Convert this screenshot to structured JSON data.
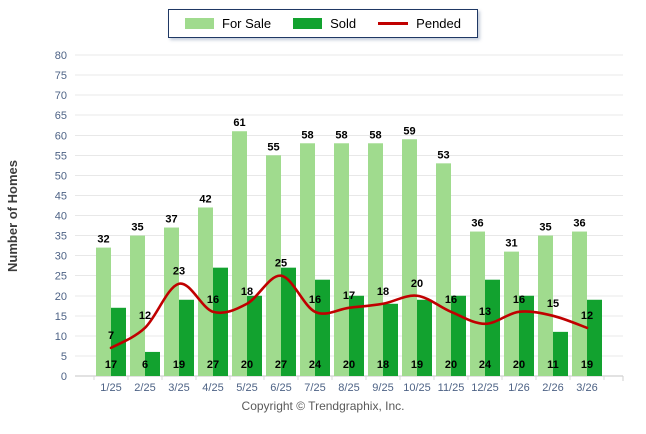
{
  "footer": {
    "copyright": "Copyright © Trendgraphix, Inc."
  },
  "chart_data": {
    "type": "bar",
    "subtype": "grouped-bars-with-line-overlay",
    "title": "",
    "xlabel": "",
    "ylabel": "Number of Homes",
    "ylim": [
      0,
      80
    ],
    "ytick_step": 5,
    "grid": true,
    "legend_position": "top-center",
    "bar_value_labels": true,
    "categories": [
      "1/25",
      "2/25",
      "3/25",
      "4/25",
      "5/25",
      "6/25",
      "7/25",
      "8/25",
      "9/25",
      "10/25",
      "11/25",
      "12/25",
      "1/26",
      "2/26",
      "3/26"
    ],
    "series": [
      {
        "name": "For Sale",
        "type": "bar",
        "color": "#A0DB8E",
        "values": [
          32,
          35,
          37,
          42,
          61,
          55,
          58,
          58,
          58,
          59,
          53,
          36,
          31,
          35,
          36
        ]
      },
      {
        "name": "Sold",
        "type": "bar",
        "color": "#12A22F",
        "values": [
          17,
          6,
          19,
          27,
          20,
          27,
          24,
          20,
          18,
          19,
          20,
          24,
          20,
          11,
          19
        ]
      },
      {
        "name": "Pended",
        "type": "line",
        "color": "#C00000",
        "values": [
          7,
          12,
          23,
          16,
          18,
          25,
          16,
          17,
          18,
          20,
          16,
          13,
          16,
          15,
          12
        ]
      }
    ],
    "axis_colors": {
      "tick_label": "#4E6386",
      "grid_line": "#E8E8E8",
      "axis_line": "#C6C6C6",
      "ylabel_color": "#3C3C3C",
      "value_label": "#000000"
    }
  }
}
